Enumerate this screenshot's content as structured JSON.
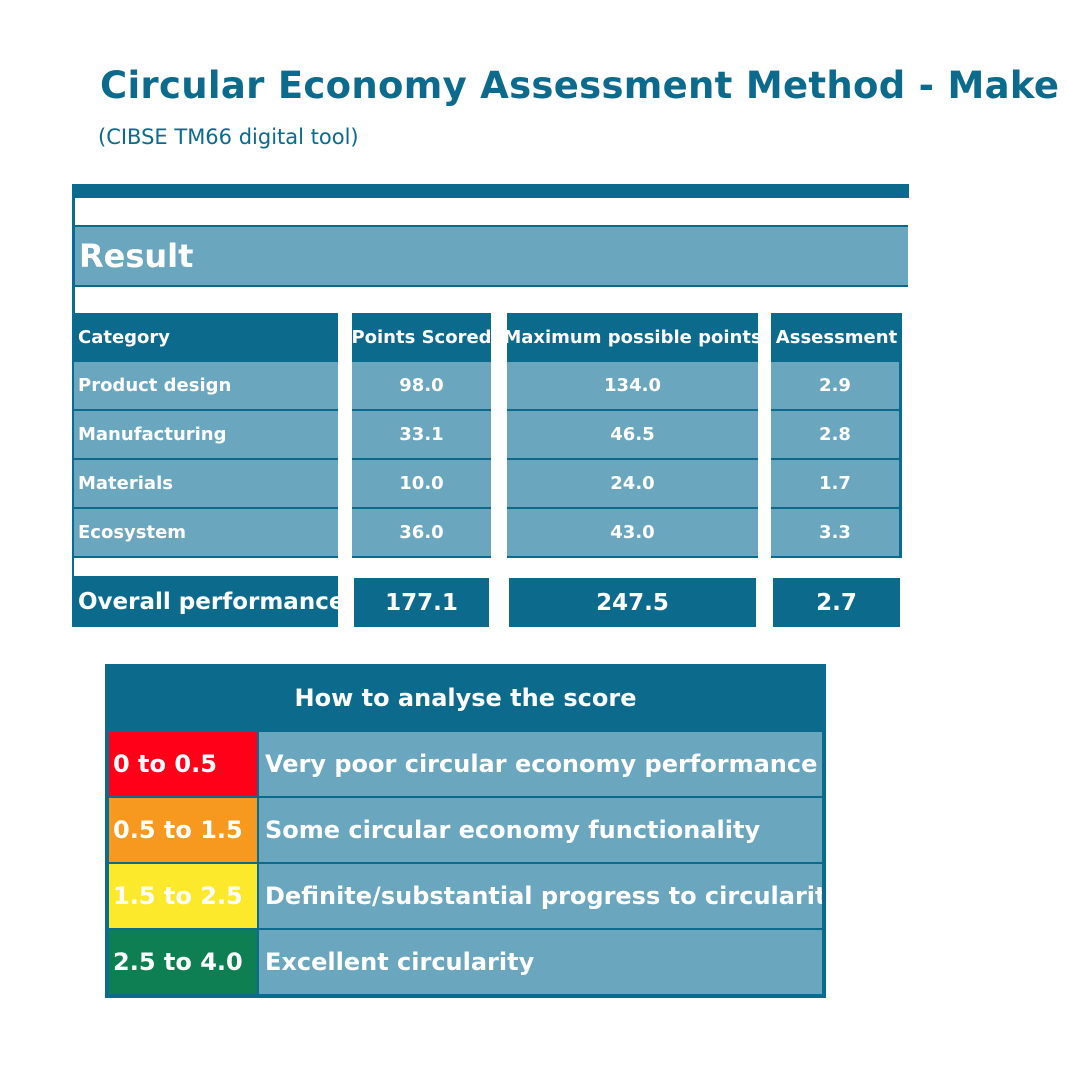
{
  "header": {
    "title": "Circular Economy Assessment Method - Make",
    "subtitle": "(CIBSE TM66 digital tool)"
  },
  "result": {
    "section_label": "Result",
    "columns": [
      "Category",
      "Points Scored",
      "Maximum possible points",
      "Assessment"
    ],
    "rows": [
      {
        "category": "Product design",
        "points": "98.0",
        "max": "134.0",
        "assessment": "2.9"
      },
      {
        "category": "Manufacturing",
        "points": "33.1",
        "max": "46.5",
        "assessment": "2.8"
      },
      {
        "category": "Materials",
        "points": "10.0",
        "max": "24.0",
        "assessment": "1.7"
      },
      {
        "category": "Ecosystem",
        "points": "36.0",
        "max": "43.0",
        "assessment": "3.3"
      }
    ],
    "total": {
      "category": "Overall performance",
      "points": "177.1",
      "max": "247.5",
      "assessment": "2.7"
    }
  },
  "legend": {
    "title": "How to analyse the score",
    "items": [
      {
        "range": "0 to 0.5",
        "description": "Very poor circular economy performance",
        "color": "#ff0018"
      },
      {
        "range": "0.5 to 1.5",
        "description": "Some circular economy functionality",
        "color": "#f7981f"
      },
      {
        "range": "1.5 to 2.5",
        "description": "Definite/substantial progress to circularity",
        "color": "#fde92c"
      },
      {
        "range": "2.5 to 4.0",
        "description": "Excellent circularity",
        "color": "#0e7f52"
      }
    ]
  }
}
